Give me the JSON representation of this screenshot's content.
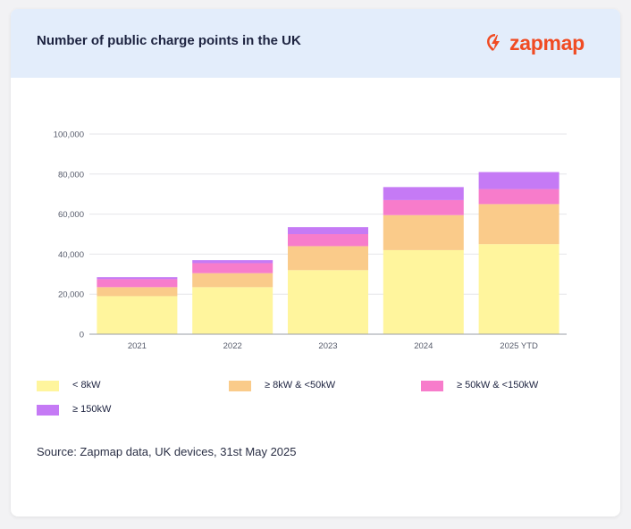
{
  "header": {
    "title": "Number of public charge points in the UK",
    "logo_text": "zapmap"
  },
  "colors": {
    "header_bg": "#e3edfb",
    "brand": "#f04b23"
  },
  "chart_data": {
    "type": "bar",
    "stacked": true,
    "title": "Number of public charge points in the UK",
    "xlabel": "",
    "ylabel": "",
    "categories": [
      "2021",
      "2022",
      "2023",
      "2024",
      "2025 YTD"
    ],
    "ylim": [
      0,
      100000
    ],
    "yticks": [
      0,
      20000,
      40000,
      60000,
      80000,
      100000
    ],
    "ytick_labels": [
      "0",
      "20,000",
      "40,000",
      "60,000",
      "80,000",
      "100,000"
    ],
    "grid": true,
    "series": [
      {
        "name": "< 8kW",
        "color": "#fff59d",
        "values": [
          19000,
          23500,
          32000,
          42000,
          45000
        ]
      },
      {
        "name": "≥ 8kW & <50kW",
        "color": "#facb8a",
        "values": [
          4500,
          7000,
          12000,
          17500,
          20000
        ]
      },
      {
        "name": "≥ 50kW & <150kW",
        "color": "#f77ccb",
        "values": [
          4000,
          5000,
          6000,
          7500,
          7500
        ]
      },
      {
        "name": "≥ 150kW",
        "color": "#c57af5",
        "values": [
          1000,
          1500,
          3500,
          6500,
          8500
        ]
      }
    ]
  },
  "source": "Source: Zapmap data, UK devices, 31st May 2025"
}
